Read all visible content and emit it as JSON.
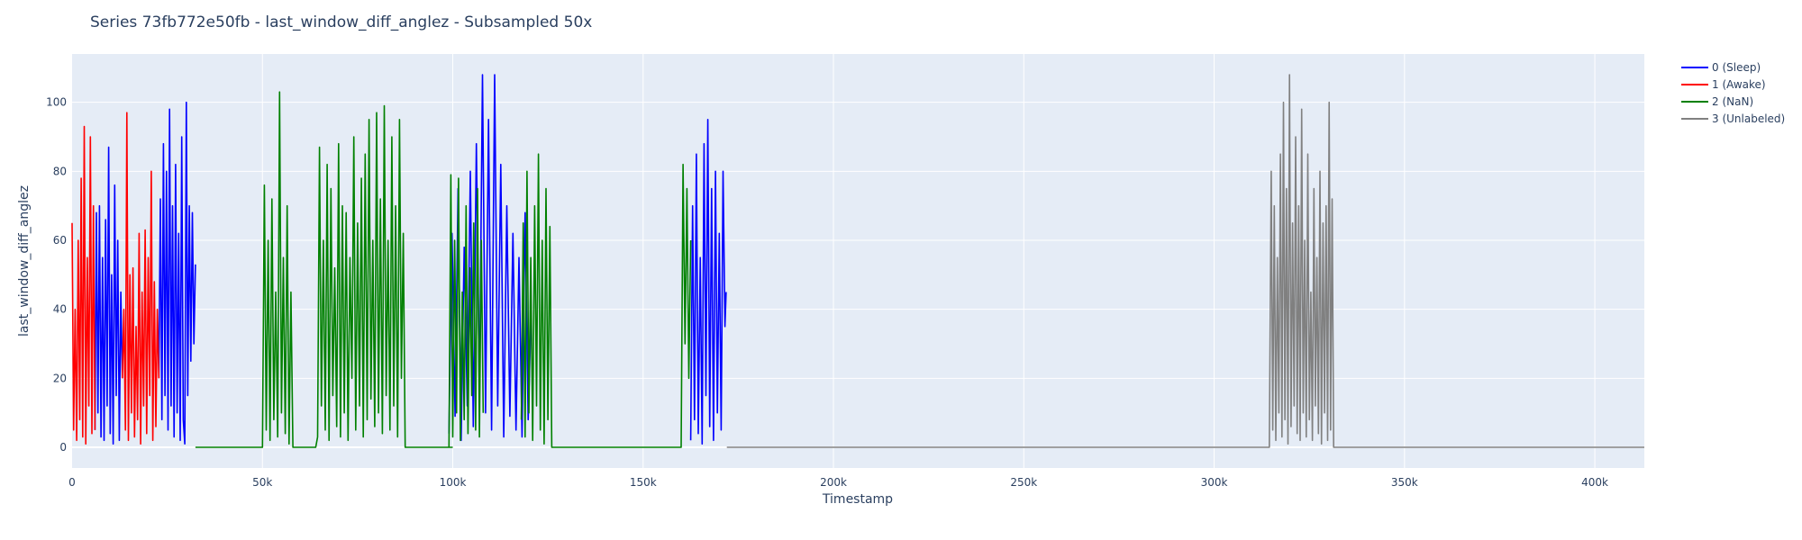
{
  "chart_data": {
    "type": "line",
    "title": "Series 73fb772e50fb - last_window_diff_anglez - Subsampled 50x",
    "xlabel": "Timestamp",
    "ylabel": "last_window_diff_anglez",
    "xlim": [
      0,
      413000
    ],
    "ylim": [
      -6,
      114
    ],
    "x_tick_values": [
      0,
      50000,
      100000,
      150000,
      200000,
      250000,
      300000,
      350000,
      400000
    ],
    "x_tick_labels": [
      "0",
      "50k",
      "100k",
      "150k",
      "200k",
      "250k",
      "300k",
      "350k",
      "400k"
    ],
    "y_tick_values": [
      0,
      20,
      40,
      60,
      80,
      100
    ],
    "y_tick_labels": [
      "0",
      "20",
      "40",
      "60",
      "80",
      "100"
    ],
    "grid": true,
    "legend_position": "right",
    "colors": {
      "plot_bg": "#e5ecf6",
      "grid": "#ffffff",
      "sleep": "#0000ff",
      "awake": "#ff0000",
      "nan": "#008000",
      "unlabeled": "#808080"
    },
    "series": [
      {
        "name": "0 (Sleep)",
        "color": "#0000ff",
        "segments": [
          {
            "x": [
              6000,
              6400,
              6800,
              7200,
              7600,
              8000,
              8400,
              8800,
              9200,
              9600,
              10000,
              10400,
              10800,
              11200,
              11600,
              12000,
              12400,
              12800,
              13200
            ],
            "y": [
              5,
              68,
              10,
              70,
              3,
              55,
              2,
              66,
              12,
              87,
              4,
              50,
              1,
              76,
              15,
              60,
              2,
              45,
              20
            ]
          },
          {
            "x": [
              22800,
              23200,
              23600,
              24000,
              24400,
              24800,
              25200,
              25600,
              26000,
              26400,
              26800,
              27200,
              27600,
              28000,
              28400,
              28800,
              29200,
              29600,
              30000,
              30400,
              30800,
              31200,
              31600,
              32000,
              32400
            ],
            "y": [
              20,
              72,
              8,
              88,
              15,
              80,
              5,
              98,
              12,
              70,
              3,
              82,
              10,
              62,
              2,
              90,
              8,
              1,
              100,
              15,
              70,
              25,
              68,
              30,
              53
            ]
          },
          {
            "x": [
              99000,
              99800,
              100600,
              101400,
              102200,
              103000,
              103800,
              104600,
              105400,
              106200,
              107000,
              107800,
              108600,
              109400,
              110200,
              111000,
              111800,
              112600,
              113400,
              114200,
              115000,
              115800,
              116600,
              117400,
              118200,
              119000,
              119800,
              120600
            ],
            "y": [
              4,
              62,
              9,
              75,
              2,
              58,
              12,
              80,
              6,
              88,
              14,
              108,
              10,
              95,
              5,
              108,
              12,
              82,
              3,
              70,
              9,
              62,
              5,
              55,
              3,
              68,
              8,
              40
            ]
          },
          {
            "x": [
              162500,
              163000,
              163500,
              164000,
              164500,
              165000,
              165500,
              166000,
              166500,
              167000,
              167500,
              168000,
              168500,
              169000,
              169500,
              170000,
              170500,
              171000,
              171500,
              171800
            ],
            "y": [
              2,
              70,
              8,
              85,
              4,
              55,
              1,
              88,
              15,
              95,
              6,
              75,
              2,
              80,
              10,
              62,
              5,
              80,
              35,
              45
            ]
          }
        ]
      },
      {
        "name": "1 (Awake)",
        "color": "#ff0000",
        "segments": [
          {
            "x": [
              0,
              400,
              800,
              1200,
              1600,
              2000,
              2400,
              2800,
              3200,
              3600,
              4000,
              4400,
              4800,
              5200,
              5600,
              6000
            ],
            "y": [
              65,
              5,
              40,
              2,
              60,
              8,
              78,
              3,
              93,
              1,
              55,
              12,
              90,
              4,
              70,
              5
            ]
          },
          {
            "x": [
              13200,
              13600,
              14000,
              14400,
              14800,
              15200,
              15600,
              16000,
              16400,
              16800,
              17200,
              17600,
              18000,
              18400,
              18800,
              19200,
              19600,
              20000,
              20400,
              20800,
              21200,
              21600,
              22000,
              22400,
              22800
            ],
            "y": [
              20,
              40,
              5,
              97,
              2,
              50,
              10,
              52,
              3,
              35,
              8,
              62,
              1,
              45,
              12,
              63,
              4,
              55,
              15,
              80,
              2,
              48,
              6,
              40,
              20
            ]
          }
        ]
      },
      {
        "name": "2 (NaN)",
        "color": "#008000",
        "segments": [
          {
            "x": [
              32400,
              50000,
              50500,
              51000,
              51500,
              52000,
              52500,
              53000,
              53500,
              54000,
              54500,
              55000,
              55500,
              56000,
              56500,
              57000,
              57500,
              58000,
              59000,
              64000,
              64500,
              65000,
              65500,
              66000,
              66500,
              67000,
              67500,
              68000,
              68500,
              69000,
              69500,
              70000,
              70500,
              71000,
              71500,
              72000,
              72500,
              73000,
              73500,
              74000,
              74500,
              75000,
              75500,
              76000,
              76500,
              77000,
              77500,
              78000,
              78500,
              79000,
              79500,
              80000,
              80500,
              81000,
              81500,
              82000,
              82500,
              83000,
              83500,
              84000,
              84500,
              85000,
              85500,
              86000,
              86500,
              87000,
              87500,
              88000,
              100000
            ],
            "y": [
              0,
              0,
              76,
              5,
              60,
              2,
              72,
              8,
              45,
              3,
              103,
              10,
              55,
              4,
              70,
              1,
              45,
              0,
              0,
              0,
              3,
              87,
              12,
              60,
              5,
              82,
              2,
              75,
              15,
              52,
              6,
              88,
              3,
              70,
              10,
              68,
              2,
              55,
              20,
              90,
              5,
              65,
              12,
              78,
              3,
              85,
              8,
              95,
              14,
              60,
              6,
              97,
              10,
              72,
              4,
              99,
              15,
              60,
              5,
              90,
              12,
              70,
              3,
              95,
              20,
              62,
              0,
              0,
              0
            ]
          },
          {
            "x": [
              99000,
              99500,
              100000,
              100500,
              101000,
              101500,
              102000,
              102500,
              103000,
              103500,
              104000,
              104500,
              105000,
              105500,
              106000,
              106500,
              107000,
              107500,
              108000
            ],
            "y": [
              0,
              79,
              3,
              60,
              10,
              78,
              2,
              45,
              8,
              70,
              4,
              52,
              15,
              65,
              5,
              75,
              3,
              60,
              10
            ]
          },
          {
            "x": [
              118000,
              118500,
              119000,
              119500,
              120000,
              120500,
              121000,
              121500,
              122000,
              122500,
              123000,
              123500,
              124000,
              124500,
              125000,
              125500,
              126000,
              150000,
              160000,
              160500,
              161000,
              161500,
              162000,
              162500
            ],
            "y": [
              8,
              65,
              3,
              80,
              10,
              55,
              2,
              70,
              12,
              85,
              5,
              60,
              1,
              75,
              8,
              64,
              0,
              0,
              0,
              82,
              30,
              75,
              20,
              60
            ]
          }
        ]
      },
      {
        "name": "3 (Unlabeled)",
        "color": "#808080",
        "segments": [
          {
            "x": [
              172000,
              314500,
              315000,
              315400,
              315800,
              316200,
              316600,
              317000,
              317400,
              317800,
              318200,
              318600,
              319000,
              319400,
              319800,
              320200,
              320600,
              321000,
              321400,
              321800,
              322200,
              322600,
              323000,
              323400,
              323800,
              324200,
              324600,
              325000,
              325400,
              325800,
              326200,
              326600,
              327000,
              327400,
              327800,
              328200,
              328600,
              329000,
              329400,
              329800,
              330200,
              330600,
              331000,
              331400,
              413000
            ],
            "y": [
              0,
              0,
              80,
              5,
              70,
              2,
              55,
              10,
              85,
              3,
              100,
              8,
              75,
              1,
              108,
              6,
              65,
              12,
              90,
              4,
              70,
              2,
              98,
              10,
              60,
              3,
              85,
              8,
              45,
              2,
              75,
              12,
              55,
              4,
              80,
              1,
              65,
              10,
              70,
              2,
              100,
              5,
              72,
              0,
              0
            ]
          }
        ]
      }
    ]
  }
}
